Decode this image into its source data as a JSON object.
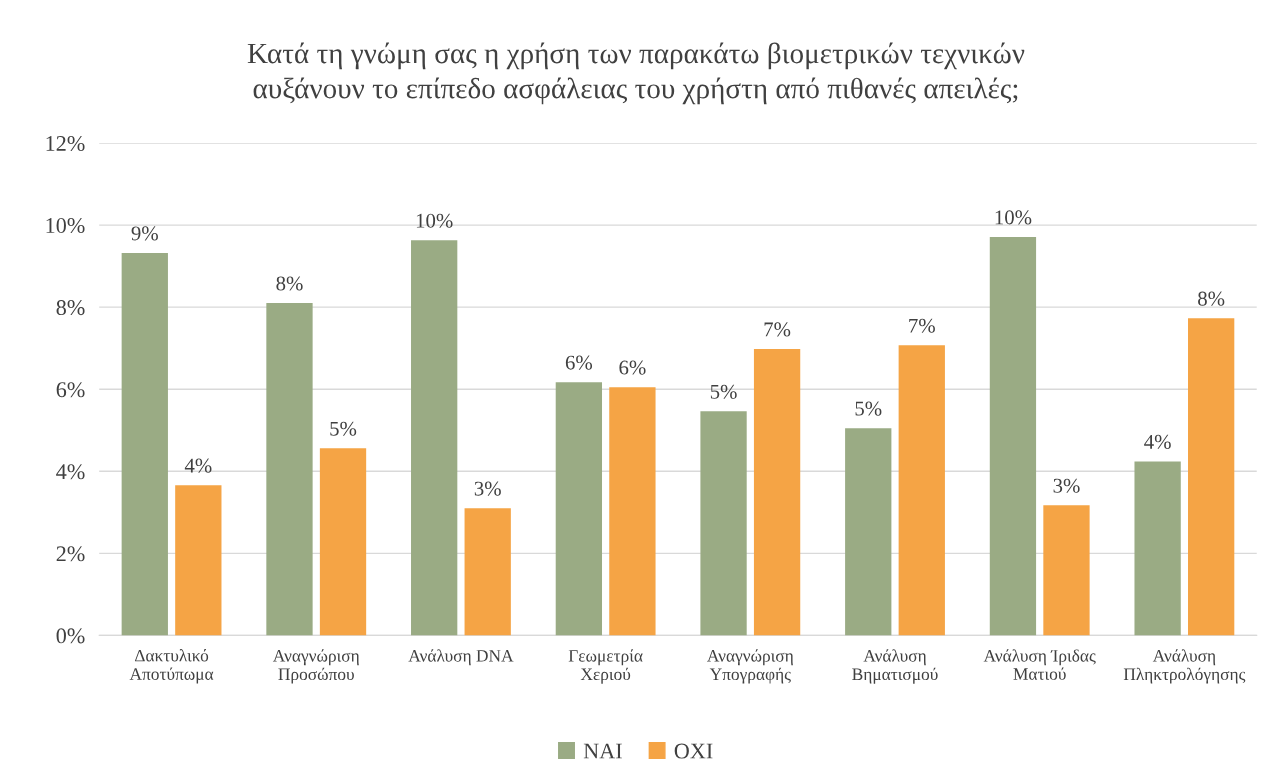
{
  "chart_data": {
    "type": "bar",
    "title": "Κατά τη γνώμη σας η χρήση των παρακάτω βιομετρικών τεχνικών\nαυξάνουν το επίπεδο ασφάλειας του χρήστη από πιθανές απειλές;",
    "categories": [
      "Δακτυλικό\nΑποτύπωμα",
      "Αναγνώριση\nΠροσώπου",
      "Ανάλυση DNA",
      "Γεωμετρία\nΧεριού",
      "Αναγνώριση\nΥπογραφής",
      "Ανάλυση\nΒηματισμού",
      "Ανάλυση Ίριδας\nΜατιού",
      "Ανάλυση\nΠληκτρολόγησης"
    ],
    "series": [
      {
        "name": "ΝΑΙ",
        "color": "#9aab84",
        "values": [
          9.32,
          8.1,
          9.63,
          6.17,
          5.46,
          5.05,
          9.71,
          4.24
        ],
        "value_labels": [
          "9%",
          "8%",
          "10%",
          "6%",
          "5%",
          "5%",
          "10%",
          "4%"
        ]
      },
      {
        "name": "ΟΧΙ",
        "color": "#f5a445",
        "values": [
          3.66,
          4.56,
          3.1,
          6.05,
          6.98,
          7.07,
          3.17,
          7.73
        ],
        "value_labels": [
          "4%",
          "5%",
          "3%",
          "6%",
          "7%",
          "7%",
          "3%",
          "8%"
        ]
      }
    ],
    "ylim": [
      0,
      12
    ],
    "yticks": [
      {
        "value": 0,
        "label": "0%"
      },
      {
        "value": 2,
        "label": "2%"
      },
      {
        "value": 4,
        "label": "4%"
      },
      {
        "value": 6,
        "label": "6%"
      },
      {
        "value": 8,
        "label": "8%"
      },
      {
        "value": 10,
        "label": "10%"
      },
      {
        "value": 12,
        "label": "12%"
      }
    ],
    "grid": "y",
    "legend": "bottom"
  }
}
